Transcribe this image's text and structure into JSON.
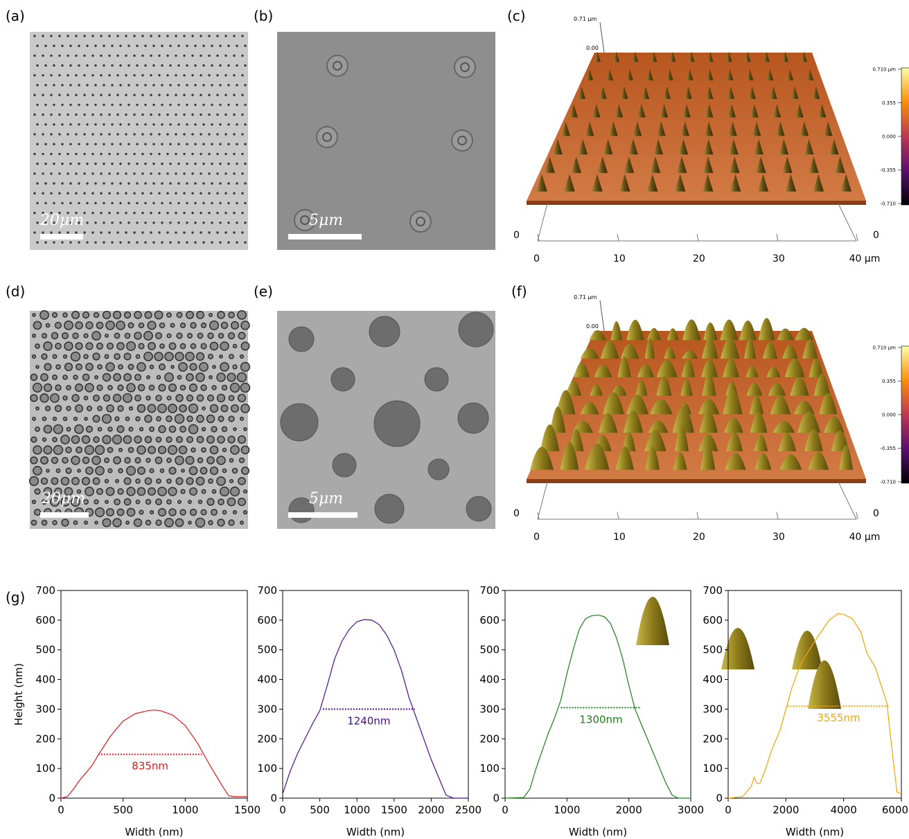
{
  "panels": [
    {
      "label": "(a)",
      "scale_bar": "20μm"
    },
    {
      "label": "(b)",
      "scale_bar": "5μm"
    },
    {
      "label": "(c)",
      "z_max": "0.71 μm",
      "z_zero": "0.00",
      "depth_ticks": [
        "0",
        "0"
      ],
      "x_axis_ticks": [
        "0",
        "10",
        "20",
        "30",
        "40 μm"
      ],
      "colorbar_ticks": [
        "0.710 μm",
        "0.355",
        "0.000",
        "-0.355",
        "-0.710"
      ]
    },
    {
      "label": "(d)",
      "scale_bar": "20μm"
    },
    {
      "label": "(e)",
      "scale_bar": "5μm"
    },
    {
      "label": "(f)",
      "z_max": "0.71 μm",
      "z_zero": "0.00",
      "depth_ticks": [
        "0",
        "0"
      ],
      "x_axis_ticks": [
        "0",
        "10",
        "20",
        "30",
        "40 μm"
      ],
      "colorbar_ticks": [
        "0.710 μm",
        "0.355",
        "0.000",
        "-0.355",
        "-0.710"
      ]
    }
  ],
  "figure_g_label": "(g)",
  "chart_data": [
    {
      "type": "line",
      "ylabel": "Height (nm)",
      "xlabel": "Width (nm)",
      "xlim": [
        0,
        1500
      ],
      "ylim": [
        0,
        700
      ],
      "xticks": [
        0,
        500,
        1000,
        1500
      ],
      "yticks": [
        0,
        100,
        200,
        300,
        400,
        500,
        600,
        700
      ],
      "series": [
        {
          "color": "#e8141c",
          "x": [
            0,
            50,
            100,
            150,
            200,
            250,
            300,
            400,
            500,
            600,
            700,
            750,
            800,
            900,
            1000,
            1100,
            1200,
            1300,
            1350,
            1400,
            1500
          ],
          "values": [
            0,
            5,
            30,
            60,
            85,
            110,
            145,
            210,
            260,
            285,
            295,
            297,
            295,
            280,
            245,
            185,
            110,
            40,
            8,
            5,
            5
          ]
        }
      ],
      "annotation": {
        "text": "835nm",
        "y": 148,
        "x_start": 300,
        "x_end": 1135
      }
    },
    {
      "type": "line",
      "xlabel": "Width (nm)",
      "xlim": [
        0,
        2500
      ],
      "ylim": [
        0,
        700
      ],
      "xticks": [
        0,
        500,
        1000,
        1500,
        2000,
        2500
      ],
      "yticks": [
        0,
        100,
        200,
        300,
        400,
        500,
        600,
        700
      ],
      "series": [
        {
          "color": "#4b0a8c",
          "x": [
            0,
            100,
            200,
            300,
            400,
            500,
            600,
            700,
            800,
            900,
            1000,
            1100,
            1200,
            1300,
            1400,
            1500,
            1600,
            1700,
            1800,
            1900,
            2000,
            2100,
            2200,
            2300,
            2500
          ],
          "values": [
            15,
            90,
            150,
            200,
            250,
            295,
            380,
            470,
            530,
            570,
            595,
            602,
            600,
            585,
            550,
            500,
            430,
            340,
            270,
            200,
            130,
            70,
            10,
            0,
            0
          ]
        }
      ],
      "annotation": {
        "text": "1240nm",
        "y": 300,
        "x_start": 540,
        "x_end": 1780
      }
    },
    {
      "type": "line",
      "xlabel": "Width (nm)",
      "xlim": [
        0,
        3000
      ],
      "ylim": [
        0,
        700
      ],
      "xticks": [
        0,
        1000,
        2000,
        3000
      ],
      "yticks": [
        0,
        100,
        200,
        300,
        400,
        500,
        600,
        700
      ],
      "series": [
        {
          "color": "#1a801a",
          "x": [
            0,
            300,
            400,
            500,
            600,
            700,
            800,
            900,
            1000,
            1100,
            1200,
            1300,
            1400,
            1500,
            1600,
            1700,
            1800,
            1900,
            2000,
            2100,
            2200,
            2300,
            2400,
            2500,
            2600,
            2700,
            2800,
            3000
          ],
          "values": [
            0,
            2,
            30,
            100,
            160,
            220,
            270,
            330,
            420,
            500,
            570,
            605,
            615,
            617,
            612,
            590,
            540,
            470,
            380,
            300,
            250,
            200,
            150,
            100,
            50,
            10,
            0,
            0
          ]
        }
      ],
      "annotation": {
        "text": "1300nm",
        "y": 305,
        "x_start": 900,
        "x_end": 2200
      }
    },
    {
      "type": "line",
      "xlabel": "Width (nm)",
      "xlim": [
        0,
        6000
      ],
      "ylim": [
        0,
        700
      ],
      "xticks": [
        0,
        2000,
        4000,
        6000
      ],
      "yticks": [
        0,
        100,
        200,
        300,
        400,
        500,
        600,
        700
      ],
      "series": [
        {
          "color": "#f5a300",
          "x": [
            0,
            500,
            800,
            900,
            1000,
            1100,
            1300,
            1500,
            1800,
            2000,
            2200,
            2500,
            3000,
            3500,
            3800,
            4000,
            4300,
            4600,
            4800,
            5100,
            5300,
            5500,
            5600,
            5750,
            5850,
            6000
          ],
          "values": [
            0,
            5,
            40,
            70,
            50,
            50,
            100,
            160,
            230,
            300,
            370,
            450,
            530,
            600,
            622,
            620,
            605,
            560,
            490,
            440,
            380,
            320,
            230,
            100,
            20,
            15
          ]
        }
      ],
      "annotation": {
        "text": "3555nm",
        "y": 310,
        "x_start": 2050,
        "x_end": 5605
      }
    }
  ]
}
